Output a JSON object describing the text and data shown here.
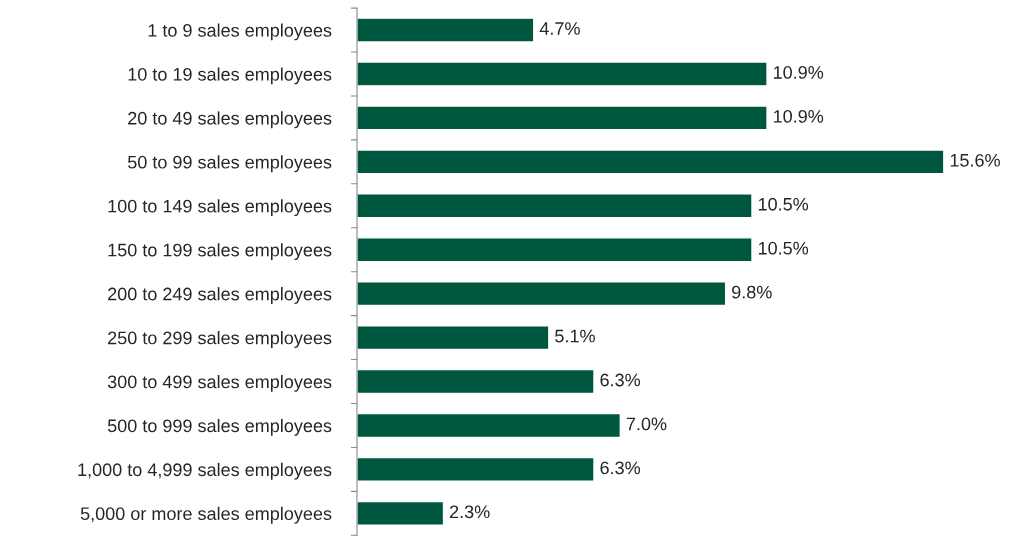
{
  "chart_data": {
    "type": "bar",
    "orientation": "horizontal",
    "categories": [
      "1 to 9 sales employees",
      "10 to 19 sales employees",
      "20 to 49 sales employees",
      "50 to 99 sales employees",
      "100 to 149 sales employees",
      "150 to 199 sales employees",
      "200 to 249 sales employees",
      "250 to 299 sales employees",
      "300 to 499 sales employees",
      "500 to 999 sales employees",
      "1,000 to 4,999 sales employees",
      "5,000 or more sales employees"
    ],
    "values": [
      4.7,
      10.9,
      10.9,
      15.6,
      10.5,
      10.5,
      9.8,
      5.1,
      6.3,
      7.0,
      6.3,
      2.3
    ],
    "value_labels": [
      "4.7%",
      "10.9%",
      "10.9%",
      "15.6%",
      "10.5%",
      "10.5%",
      "9.8%",
      "5.1%",
      "6.3%",
      "7.0%",
      "6.3%",
      "2.3%"
    ],
    "color": "#00573f",
    "grid": false,
    "legend": false
  }
}
